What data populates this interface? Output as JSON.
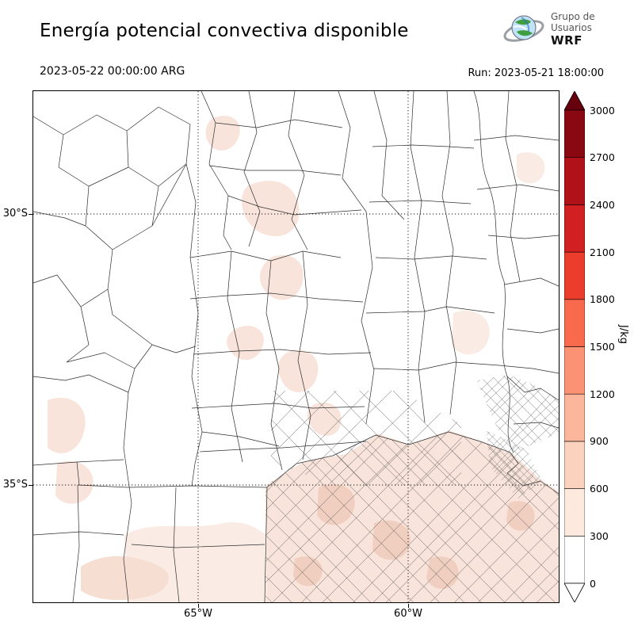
{
  "header": {
    "title": "Energía potencial convectiva disponible"
  },
  "logo": {
    "line1": "Grupo de",
    "line2": "Usuarios",
    "line3": "WRF"
  },
  "subheader": {
    "valid_time": "2023-05-22 00:00:00 ARG",
    "run_label": "Run: 2023-05-21 18:00:00"
  },
  "map": {
    "lat_labels": [
      "30°S",
      "35°S"
    ],
    "lon_labels": [
      "65°W",
      "60°W"
    ]
  },
  "colorbar": {
    "unit": "J/kg",
    "ticks": [
      "0",
      "300",
      "600",
      "900",
      "1200",
      "1500",
      "1800",
      "2100",
      "2400",
      "2700",
      "3000"
    ],
    "segment_colors": [
      "#ffffff",
      "#fde9dd",
      "#fbd2bd",
      "#fbb69b",
      "#fb9274",
      "#f96a4d",
      "#ec3c2c",
      "#d21f21",
      "#b1121a",
      "#8a0812"
    ],
    "over_color": "#67000d",
    "under_color": "#ffffff"
  },
  "chart_data": {
    "type": "heatmap",
    "title": "Energía potencial convectiva disponible",
    "variable": "CAPE (convective available potential energy)",
    "unit": "J/kg",
    "levels": [
      0,
      300,
      600,
      900,
      1200,
      1500,
      1800,
      2100,
      2400,
      2700,
      3000
    ],
    "colormap": "white to dark red (Reds), arrow extensions at both ends",
    "valid_time": "2023-05-22 00:00:00 ARG",
    "run": "2023-05-21 18:00:00",
    "x_ticks": [
      "65°W",
      "60°W"
    ],
    "y_ticks": [
      "30°S",
      "35°S"
    ],
    "legend_position": "right",
    "region": "central-northern Argentina with province and department boundaries",
    "observed_values": "mostly 0–600 J/kg; light pink shading over Buenos Aires, La Pampa and scattered patches in the center-north"
  }
}
